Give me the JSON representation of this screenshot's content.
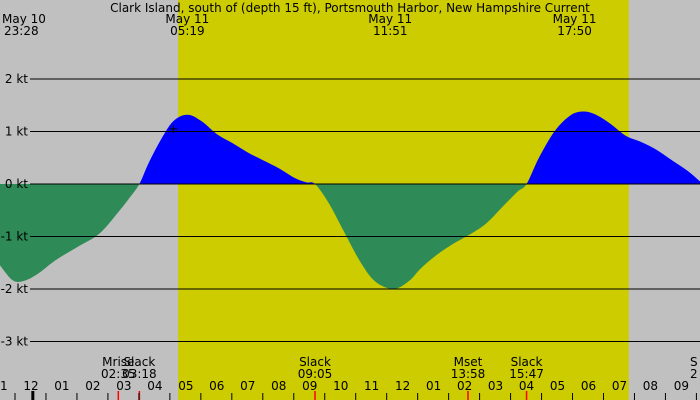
{
  "chart_data": {
    "type": "area",
    "title": "Clark Island, south of (depth 15 ft), Portsmouth Harbor, New Hampshire Current",
    "xlabel": "",
    "ylabel": "",
    "ylim": [
      -3.2,
      2.2
    ],
    "x_range_hours": [
      -0.2,
      22.4
    ],
    "grid": true,
    "colors": {
      "background": "#c0c0c0",
      "daylight": "#cccc00",
      "flood": "#0000ff",
      "ebb": "#2e8b57",
      "gridline": "#000000",
      "event_tick": "#ff0000",
      "now_marker": "#000000"
    },
    "y_ticks": [
      {
        "value": 2,
        "label": "2 kt"
      },
      {
        "value": 1,
        "label": "1 kt"
      },
      {
        "value": 0,
        "label": "0 kt"
      },
      {
        "value": -1,
        "label": "-1 kt"
      },
      {
        "value": -2,
        "label": "-2 kt"
      },
      {
        "value": -3,
        "label": "-3 kt"
      }
    ],
    "hour_ticks": [
      {
        "value": -0.2,
        "label": "11"
      },
      {
        "value": 0.8,
        "label": "12"
      },
      {
        "value": 1.8,
        "label": "01"
      },
      {
        "value": 2.8,
        "label": "02"
      },
      {
        "value": 3.8,
        "label": "03"
      },
      {
        "value": 4.8,
        "label": "04"
      },
      {
        "value": 5.8,
        "label": "05"
      },
      {
        "value": 6.8,
        "label": "06"
      },
      {
        "value": 7.8,
        "label": "07"
      },
      {
        "value": 8.8,
        "label": "08"
      },
      {
        "value": 9.8,
        "label": "09"
      },
      {
        "value": 10.8,
        "label": "10"
      },
      {
        "value": 11.8,
        "label": "11"
      },
      {
        "value": 12.8,
        "label": "12"
      },
      {
        "value": 13.8,
        "label": "01"
      },
      {
        "value": 14.8,
        "label": "02"
      },
      {
        "value": 15.8,
        "label": "03"
      },
      {
        "value": 16.8,
        "label": "04"
      },
      {
        "value": 17.8,
        "label": "05"
      },
      {
        "value": 18.8,
        "label": "06"
      },
      {
        "value": 19.8,
        "label": "07"
      },
      {
        "value": 20.8,
        "label": "08"
      },
      {
        "value": 21.8,
        "label": "09"
      }
    ],
    "top_labels": [
      {
        "value": 0.0,
        "date": "May 10",
        "time": "23:28",
        "anchor": "start"
      },
      {
        "value": 5.85,
        "date": "May 11",
        "time": "05:19",
        "anchor": "middle"
      },
      {
        "value": 12.4,
        "date": "May 11",
        "time": "11:51",
        "anchor": "middle"
      },
      {
        "value": 18.35,
        "date": "May 11",
        "time": "17:50",
        "anchor": "middle"
      }
    ],
    "daylight_hours": [
      5.55,
      20.1
    ],
    "events": [
      {
        "value": 3.62,
        "name": "Mrise",
        "time": "02:35",
        "tick": true
      },
      {
        "value": 4.3,
        "name": "Slack",
        "time": "03:18",
        "tick": true
      },
      {
        "value": 9.97,
        "name": "Slack",
        "time": "09:05",
        "tick": true
      },
      {
        "value": 14.91,
        "name": "Mset",
        "time": "13:58",
        "tick": true
      },
      {
        "value": 16.8,
        "name": "Slack",
        "time": "15:47",
        "tick": true
      },
      {
        "value": 22.2,
        "name": "S",
        "time": "2",
        "tick": false
      }
    ],
    "now_marker": 0.86,
    "plus_marker": {
      "value": 5.4,
      "y": 1.05
    },
    "series": [
      {
        "x": [
          -0.2,
          0.2,
          0.55,
          1.0,
          1.6,
          2.3,
          3.0,
          3.6,
          4.0,
          4.3,
          4.6,
          5.0,
          5.4,
          5.85,
          6.3,
          6.8,
          7.3,
          7.8,
          8.3,
          8.8,
          9.3,
          9.7,
          9.97,
          10.4,
          10.9,
          11.4,
          11.9,
          12.5,
          13.0,
          13.4,
          13.9,
          14.4,
          15.0,
          15.5,
          16.0,
          16.5,
          16.8,
          17.2,
          17.7,
          18.2,
          18.6,
          19.0,
          19.5,
          20.0,
          20.5,
          21.0,
          21.5,
          22.0,
          22.4
        ],
        "y": [
          -1.55,
          -1.83,
          -1.85,
          -1.72,
          -1.45,
          -1.2,
          -0.95,
          -0.55,
          -0.25,
          0.0,
          0.4,
          0.85,
          1.2,
          1.32,
          1.2,
          0.95,
          0.78,
          0.6,
          0.45,
          0.3,
          0.12,
          0.03,
          0.0,
          -0.35,
          -0.9,
          -1.45,
          -1.85,
          -2.0,
          -1.85,
          -1.6,
          -1.35,
          -1.15,
          -0.95,
          -0.75,
          -0.45,
          -0.15,
          0.0,
          0.5,
          1.0,
          1.3,
          1.38,
          1.33,
          1.15,
          0.92,
          0.8,
          0.65,
          0.45,
          0.25,
          0.05
        ]
      }
    ]
  }
}
